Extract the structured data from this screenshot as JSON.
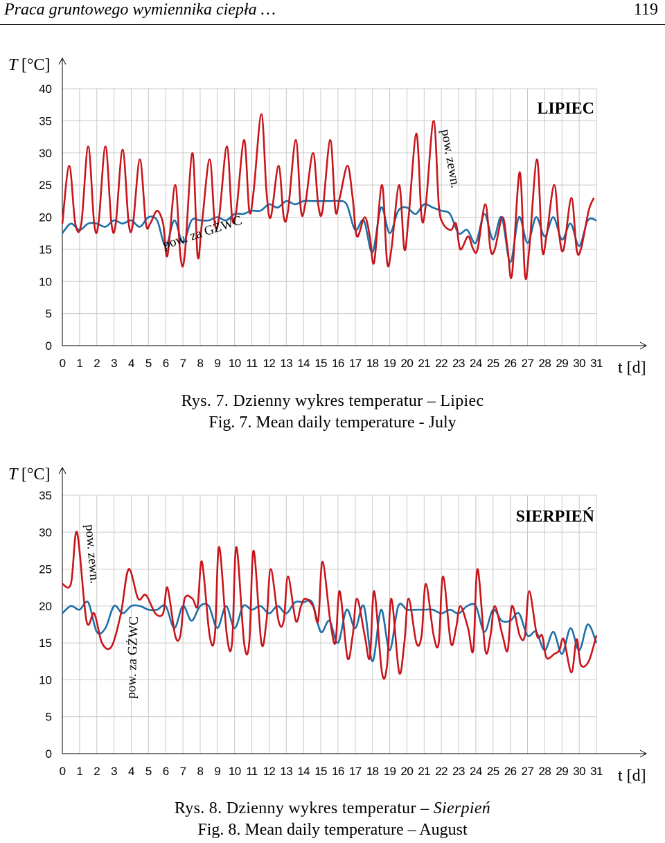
{
  "header": {
    "running_title": "Praca gruntowego wymiennika ciepła …",
    "page_number": "119"
  },
  "figures": [
    {
      "caption_pl": "Rys. 7. Dzienny wykres temperatur – Lipiec",
      "caption_en": "Fig. 7. Mean daily temperature - July"
    },
    {
      "caption_pl_prefix": "Rys. 8. Dzienny wykres temperatur – ",
      "caption_pl_italic": "Sierpień",
      "caption_en": "Fig. 8. Mean daily temperature – August"
    }
  ],
  "colors": {
    "outdoor": "#c8151b",
    "gzwc": "#1c6fa8",
    "grid": "#c8c8c8",
    "axis": "#000000"
  },
  "chart_data": [
    {
      "type": "line",
      "title": "LIPIEC",
      "ylabel": "T [°C]",
      "xlabel": "t [d]",
      "xlim": [
        0,
        31
      ],
      "ylim": [
        0,
        40
      ],
      "y_ticks": [
        0,
        5,
        10,
        15,
        20,
        25,
        30,
        35,
        40
      ],
      "x_ticks": [
        0,
        1,
        2,
        3,
        4,
        5,
        6,
        7,
        8,
        9,
        10,
        11,
        12,
        13,
        14,
        15,
        16,
        17,
        18,
        19,
        20,
        21,
        22,
        23,
        24,
        25,
        26,
        27,
        28,
        29,
        30,
        31
      ],
      "grid": true,
      "annotations": [
        {
          "text": "pow. zewn.",
          "series": "outdoor",
          "x": 22.3,
          "y": 29
        },
        {
          "text": "pow. za GŻWC",
          "series": "gzwc",
          "x": 8.2,
          "y": 17
        }
      ],
      "series": [
        {
          "id": "outdoor",
          "x": [
            0,
            0.4,
            0.75,
            1.1,
            1.5,
            1.85,
            2.1,
            2.5,
            2.85,
            3.1,
            3.5,
            3.85,
            4.1,
            4.5,
            4.85,
            5.1,
            5.5,
            5.85,
            6.1,
            6.55,
            6.85,
            7.1,
            7.55,
            7.85,
            8.1,
            8.55,
            8.85,
            9.1,
            9.55,
            9.85,
            10.1,
            10.55,
            10.85,
            11.1,
            11.55,
            11.85,
            12.1,
            12.55,
            12.85,
            13.1,
            13.55,
            13.85,
            14.1,
            14.55,
            14.85,
            15.1,
            15.55,
            15.85,
            16.1,
            16.55,
            16.85,
            17.1,
            17.55,
            17.85,
            18.1,
            18.55,
            18.85,
            19.1,
            19.55,
            19.85,
            20.1,
            20.55,
            20.85,
            21.1,
            21.55,
            21.85,
            22.1,
            22.55,
            22.85,
            23.1,
            23.55,
            23.85,
            24.1,
            24.55,
            24.85,
            25.1,
            25.55,
            25.85,
            26.1,
            26.55,
            26.85,
            27.1,
            27.55,
            27.85,
            28.1,
            28.55,
            28.85,
            29.1,
            29.55,
            29.85,
            30.1,
            30.55,
            30.85
          ],
          "y": [
            19,
            28,
            19,
            19,
            31,
            19,
            19,
            31,
            19,
            19,
            30.5,
            19,
            19,
            29,
            19,
            19,
            21,
            19,
            14,
            25,
            14,
            14,
            30,
            14,
            19,
            29,
            19,
            20,
            31,
            20,
            21,
            32,
            21,
            24,
            36,
            24,
            20,
            28,
            20,
            21,
            32,
            21,
            22,
            30,
            22,
            21,
            32,
            21,
            23,
            28,
            23,
            17,
            20,
            17,
            13,
            25,
            13,
            15,
            25,
            15,
            20,
            33,
            20,
            22,
            35,
            22,
            19,
            18,
            19,
            15,
            17,
            15,
            15,
            22,
            15,
            15,
            20,
            15,
            11,
            27,
            11,
            15,
            29,
            15,
            17,
            25,
            17,
            15,
            23,
            15,
            15,
            21,
            23
          ]
        },
        {
          "id": "gzwc",
          "x": [
            0,
            0.5,
            1,
            1.5,
            2,
            2.5,
            3,
            3.5,
            4,
            4.5,
            5,
            5.5,
            6,
            6.5,
            7,
            7.5,
            8,
            8.5,
            9,
            9.5,
            10,
            10.5,
            11,
            11.5,
            12,
            12.5,
            13,
            13.5,
            14,
            14.5,
            15,
            15.5,
            16,
            16.5,
            17,
            17.5,
            18,
            18.5,
            19,
            19.5,
            20,
            20.5,
            21,
            21.5,
            22,
            22.5,
            23,
            23.5,
            24,
            24.5,
            25,
            25.5,
            26,
            26.5,
            27,
            27.5,
            28,
            28.5,
            29,
            29.5,
            30,
            30.5,
            31
          ],
          "y": [
            17.5,
            19,
            18,
            19,
            19,
            18.5,
            19.5,
            19,
            19.5,
            18.5,
            20,
            19.5,
            15.5,
            19.5,
            16,
            19.5,
            19.5,
            19.5,
            20,
            19.5,
            20.5,
            20.5,
            21,
            21,
            22,
            21.5,
            22.5,
            22,
            22.5,
            22.5,
            22.5,
            22.5,
            22.5,
            22,
            18,
            19.5,
            14.5,
            21.5,
            17.5,
            21,
            21.5,
            20.5,
            22,
            21.5,
            21,
            20.5,
            17.5,
            18,
            16,
            20.5,
            16.5,
            20,
            13,
            20,
            16,
            20,
            17,
            20,
            16.5,
            19,
            15.5,
            19.5,
            19.5
          ]
        }
      ]
    },
    {
      "type": "line",
      "title": "SIERPIEŃ",
      "ylabel": "T [°C]",
      "xlabel": "t [d]",
      "xlim": [
        0,
        31
      ],
      "ylim": [
        0,
        35
      ],
      "y_ticks": [
        0,
        5,
        10,
        15,
        20,
        25,
        30,
        35
      ],
      "x_ticks": [
        0,
        1,
        2,
        3,
        4,
        5,
        6,
        7,
        8,
        9,
        10,
        11,
        12,
        13,
        14,
        15,
        16,
        17,
        18,
        19,
        20,
        21,
        22,
        23,
        24,
        25,
        26,
        27,
        28,
        29,
        30,
        31
      ],
      "grid": true,
      "annotations": [
        {
          "text": "pow. zewn.",
          "series": "outdoor",
          "x": 1.5,
          "y": 27
        },
        {
          "text": "pow. za GŻWC",
          "series": "gzwc",
          "x": 4.3,
          "y": 13
        }
      ],
      "series": [
        {
          "id": "outdoor",
          "x": [
            0,
            0.5,
            0.85,
            1.4,
            1.85,
            2.3,
            2.85,
            3.4,
            3.85,
            4.4,
            4.85,
            5.4,
            5.85,
            6.1,
            6.55,
            6.85,
            7.1,
            7.55,
            7.85,
            8.1,
            8.55,
            8.85,
            9.1,
            9.55,
            9.85,
            10.1,
            10.55,
            10.85,
            11.1,
            11.55,
            11.85,
            12.1,
            12.55,
            12.85,
            13.1,
            13.55,
            13.85,
            14.1,
            14.55,
            14.85,
            15.1,
            15.55,
            15.85,
            16.1,
            16.55,
            16.85,
            17.1,
            17.55,
            17.85,
            18.1,
            18.55,
            18.85,
            19.1,
            19.55,
            19.85,
            20.1,
            20.55,
            20.85,
            21.1,
            21.55,
            21.85,
            22.1,
            22.55,
            22.85,
            23.1,
            23.55,
            23.85,
            24.1,
            24.55,
            24.85,
            25.1,
            25.55,
            25.85,
            26.1,
            26.55,
            26.85,
            27.1,
            27.55,
            27.85,
            28.1,
            28.55,
            28.85,
            29.1,
            29.55,
            29.85,
            30.1,
            30.55,
            31
          ],
          "y": [
            23,
            23,
            30,
            18,
            19,
            15,
            14.5,
            19,
            25,
            21,
            21.5,
            19,
            19,
            22.5,
            16,
            16,
            21,
            21,
            20,
            26,
            16,
            16,
            28,
            16,
            15,
            28,
            15,
            15,
            27.5,
            15,
            18,
            25,
            18,
            18,
            24,
            18,
            20,
            21,
            20,
            18,
            26,
            18,
            15,
            22,
            13,
            16,
            21,
            16,
            13,
            22,
            11,
            12,
            21,
            11,
            15,
            21,
            15,
            16,
            23,
            16,
            15,
            24,
            15,
            17,
            20,
            17,
            14,
            25,
            14,
            16,
            20,
            16,
            14,
            20,
            16,
            16,
            22,
            16,
            16,
            13,
            13.5,
            14,
            15.5,
            11,
            15.5,
            12,
            12.5,
            16
          ]
        },
        {
          "id": "gzwc",
          "x": [
            0,
            0.5,
            1,
            1.5,
            2,
            2.5,
            3,
            3.5,
            4,
            4.5,
            5,
            5.5,
            6,
            6.5,
            7,
            7.5,
            8,
            8.5,
            9,
            9.5,
            10,
            10.5,
            11,
            11.5,
            12,
            12.5,
            13,
            13.5,
            14,
            14.5,
            15,
            15.5,
            16,
            16.5,
            17,
            17.5,
            18,
            18.5,
            19,
            19.5,
            20,
            20.5,
            21,
            21.5,
            22,
            22.5,
            23,
            23.5,
            24,
            24.5,
            25,
            25.5,
            26,
            26.5,
            27,
            27.5,
            28,
            28.5,
            29,
            29.5,
            30,
            30.5,
            31
          ],
          "y": [
            19,
            20,
            19.5,
            20.5,
            16.5,
            17,
            20,
            19,
            20,
            20,
            19.5,
            19.5,
            20,
            17,
            20,
            18,
            20,
            20,
            17,
            20,
            17,
            20,
            19.5,
            20,
            19,
            20,
            19,
            20.5,
            20.5,
            20.5,
            16.5,
            18,
            15,
            19.5,
            17,
            20,
            12.5,
            19.5,
            14,
            20,
            19.5,
            19.5,
            19.5,
            19.5,
            19,
            19.5,
            19,
            20,
            20,
            16.5,
            19.5,
            18,
            18,
            19,
            16,
            16.5,
            14,
            16.5,
            13.5,
            17,
            14,
            17.5,
            15
          ]
        }
      ]
    }
  ]
}
